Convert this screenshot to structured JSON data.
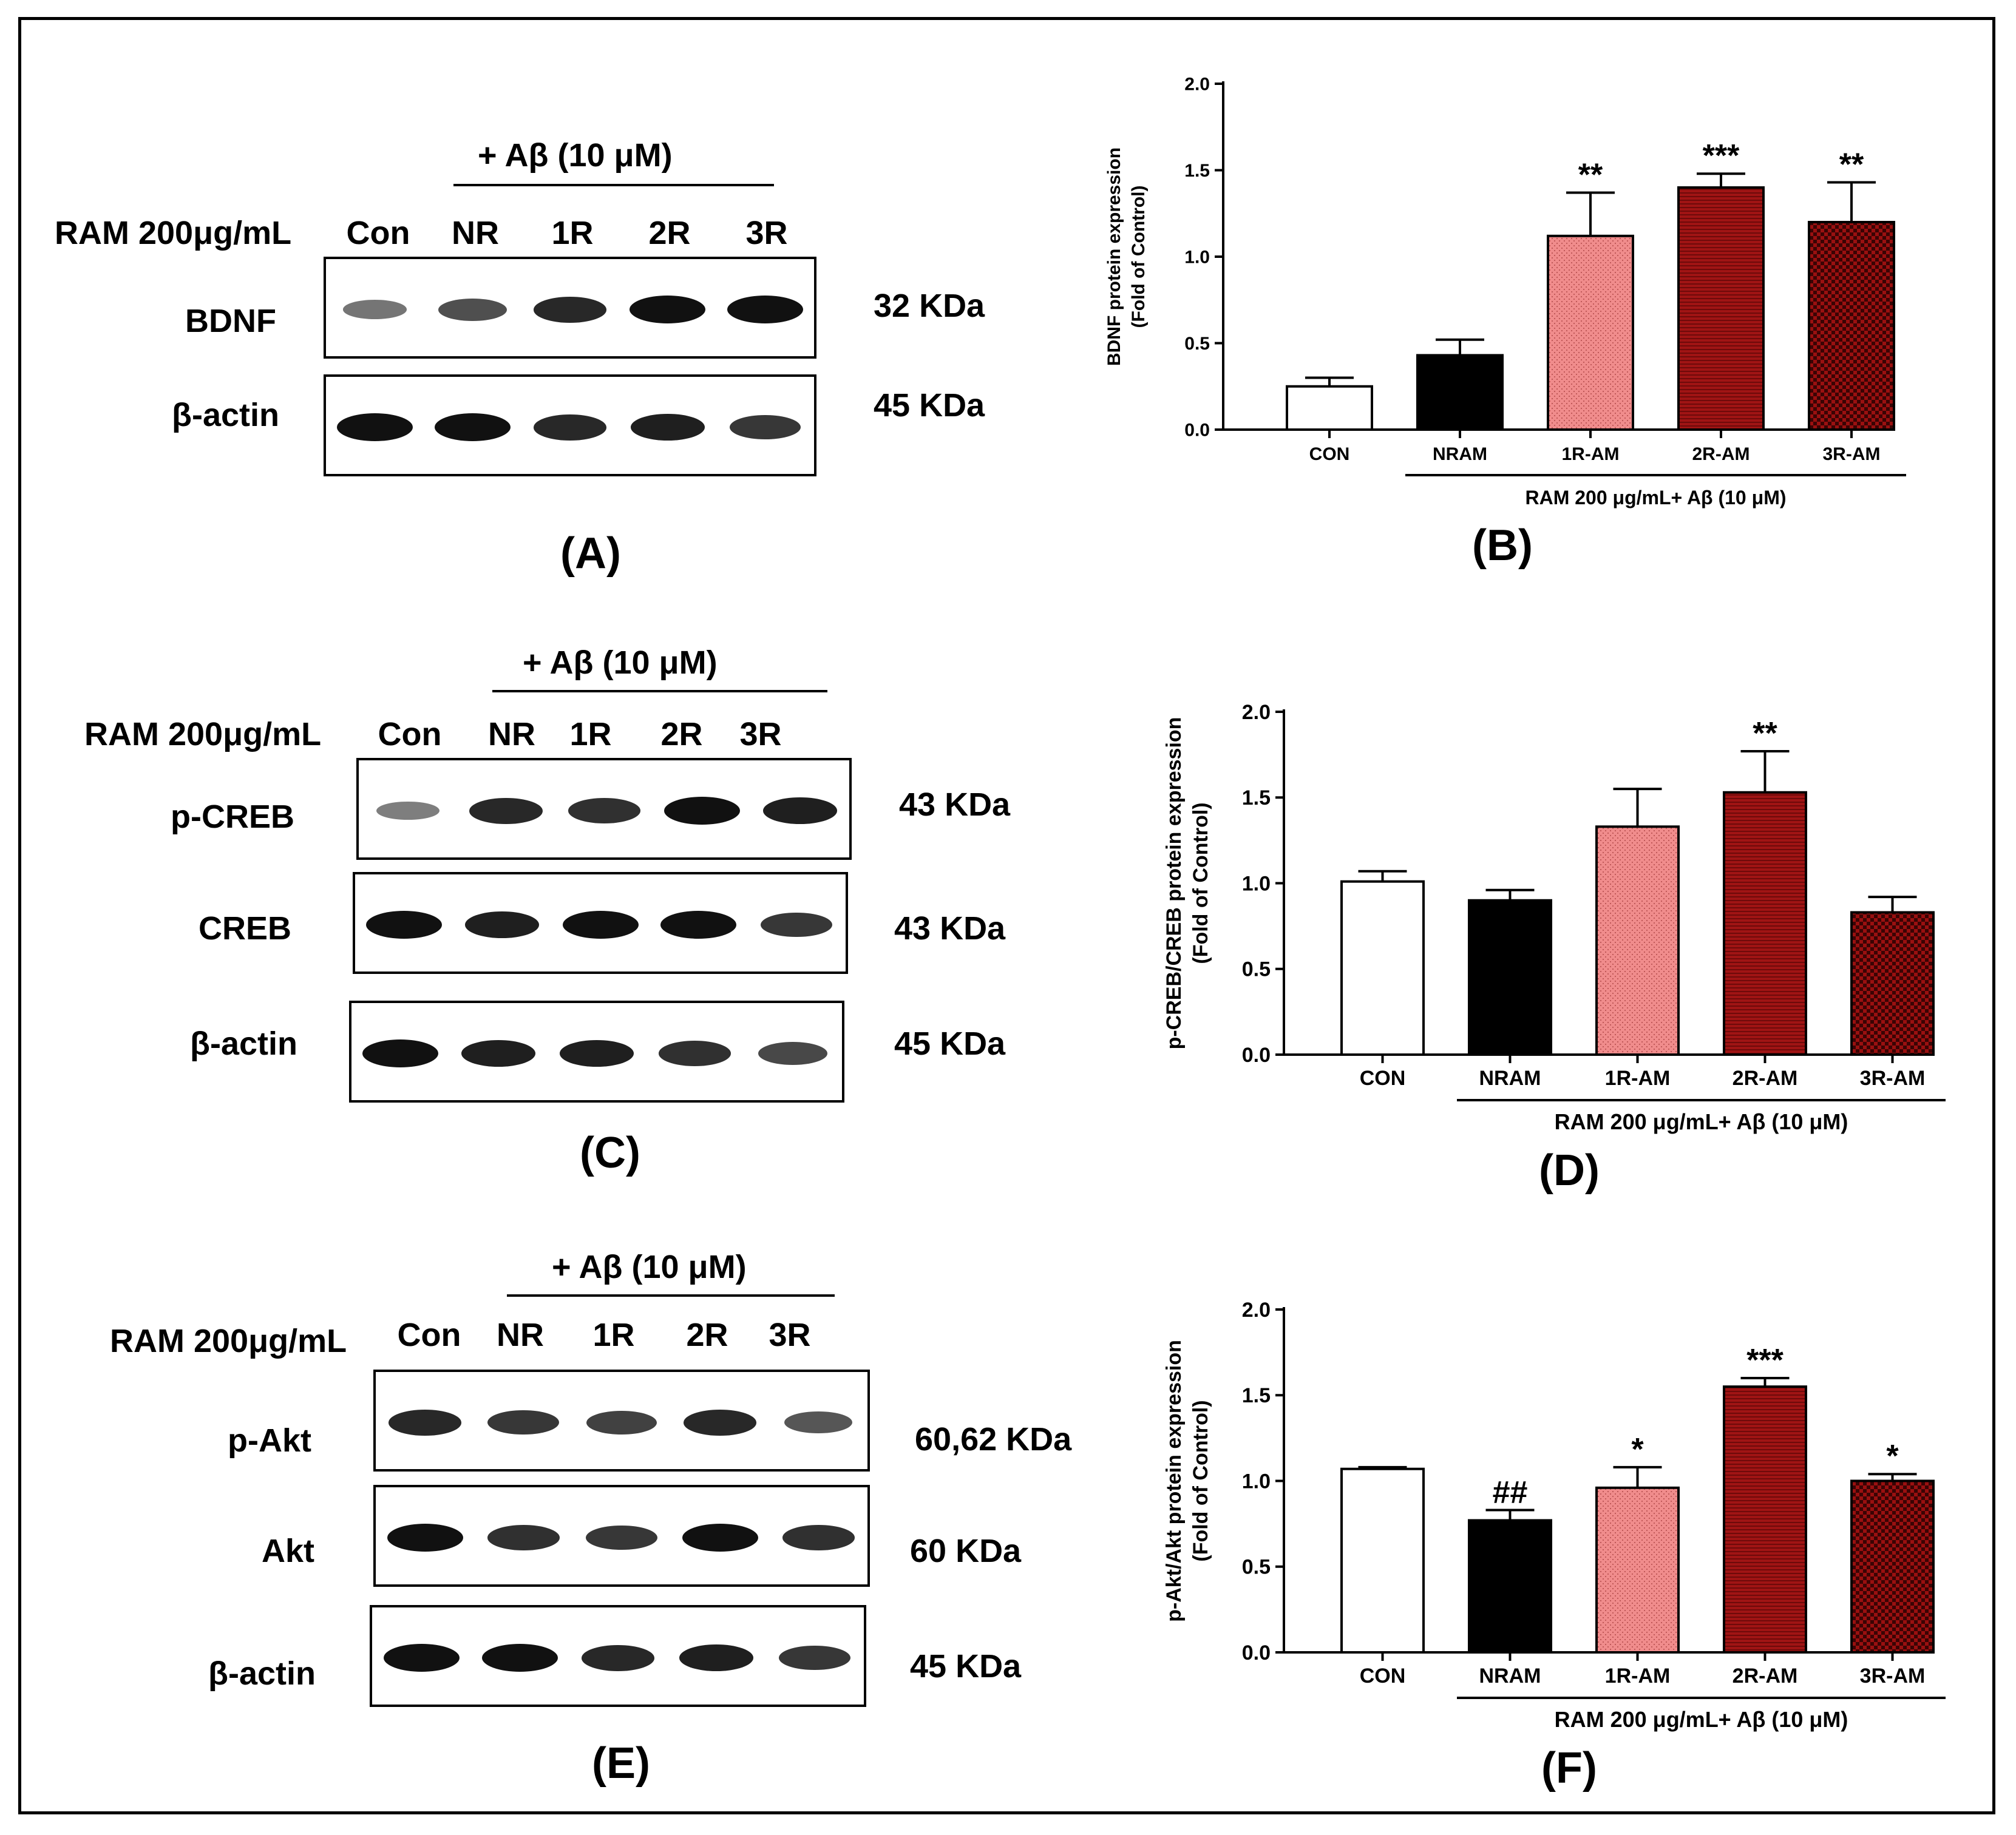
{
  "blots": [
    {
      "panel": "(A)",
      "treatment": "+ Aβ (10 μM)",
      "ram_label": "RAM 200μg/mL",
      "lanes": [
        "Con",
        "NR",
        "1R",
        "2R",
        "3R"
      ],
      "rows": [
        {
          "label": "BDNF",
          "kda": "32 KDa"
        },
        {
          "label": "β-actin",
          "kda": "45 KDa"
        }
      ]
    },
    {
      "panel": "(C)",
      "treatment": "+ Aβ (10 μM)",
      "ram_label": "RAM 200μg/mL",
      "lanes": [
        "Con",
        "NR",
        "1R",
        "2R",
        "3R"
      ],
      "rows": [
        {
          "label": "p-CREB",
          "kda": "43 KDa"
        },
        {
          "label": "CREB",
          "kda": "43 KDa"
        },
        {
          "label": "β-actin",
          "kda": "45 KDa"
        }
      ]
    },
    {
      "panel": "(E)",
      "treatment": "+ Aβ (10 μM)",
      "ram_label": "RAM 200μg/mL",
      "lanes": [
        "Con",
        "NR",
        "1R",
        "2R",
        "3R"
      ],
      "rows": [
        {
          "label": "p-Akt",
          "kda": "60,62 KDa"
        },
        {
          "label": "Akt",
          "kda": "60 KDa"
        },
        {
          "label": "β-actin",
          "kda": "45 KDa"
        }
      ]
    }
  ],
  "band_intensity": [
    [
      [
        0.35,
        0.6,
        0.85,
        1.0,
        1.0
      ],
      [
        1.0,
        1.0,
        0.85,
        0.9,
        0.75
      ]
    ],
    [
      [
        0.3,
        0.85,
        0.8,
        1.0,
        0.9
      ],
      [
        1.0,
        0.9,
        1.0,
        1.0,
        0.75
      ],
      [
        1.0,
        0.9,
        0.9,
        0.8,
        0.65
      ]
    ],
    [
      [
        0.85,
        0.75,
        0.7,
        0.85,
        0.55
      ],
      [
        1.0,
        0.8,
        0.75,
        1.0,
        0.8
      ],
      [
        1.0,
        1.0,
        0.85,
        0.9,
        0.75
      ]
    ]
  ],
  "chart_data": [
    {
      "panel": "(B)",
      "type": "bar",
      "ylabel": "BDNF protein expression\n(Fold of Control)",
      "ylim": [
        0,
        2.0
      ],
      "yticks": [
        "0.0",
        "0.5",
        "1.0",
        "1.5",
        "2.0"
      ],
      "categories": [
        "CON",
        "NRAM",
        "1R-AM",
        "2R-AM",
        "3R-AM"
      ],
      "values": [
        0.25,
        0.43,
        1.12,
        1.4,
        1.2
      ],
      "errors": [
        0.05,
        0.09,
        0.25,
        0.08,
        0.23
      ],
      "annotations": [
        "",
        "",
        "**",
        "***",
        "**"
      ],
      "group_label": "RAM 200 μg/mL+ Aβ (10 μM)"
    },
    {
      "panel": "(D)",
      "type": "bar",
      "ylabel": "p-CREB/CREB protein expression\n(Fold of Control)",
      "ylim": [
        0,
        2.0
      ],
      "yticks": [
        "0.0",
        "0.5",
        "1.0",
        "1.5",
        "2.0"
      ],
      "categories": [
        "CON",
        "NRAM",
        "1R-AM",
        "2R-AM",
        "3R-AM"
      ],
      "values": [
        1.01,
        0.9,
        1.33,
        1.53,
        0.83
      ],
      "errors": [
        0.06,
        0.06,
        0.22,
        0.24,
        0.09
      ],
      "annotations": [
        "",
        "",
        "",
        "**",
        ""
      ],
      "group_label": "RAM 200 μg/mL+ Aβ (10 μM)"
    },
    {
      "panel": "(F)",
      "type": "bar",
      "ylabel": "p-Akt/Akt protein expression\n(Fold of Control)",
      "ylim": [
        0,
        2.0
      ],
      "yticks": [
        "0.0",
        "0.5",
        "1.0",
        "1.5",
        "2.0"
      ],
      "categories": [
        "CON",
        "NRAM",
        "1R-AM",
        "2R-AM",
        "3R-AM"
      ],
      "values": [
        1.07,
        0.77,
        0.96,
        1.55,
        1.0
      ],
      "errors": [
        0.01,
        0.06,
        0.12,
        0.05,
        0.04
      ],
      "annotations": [
        "",
        "##",
        "*",
        "***",
        "*"
      ],
      "group_label": "RAM 200 μg/mL+ Aβ (10 μM)"
    }
  ],
  "colors": {
    "con": "#ffffff",
    "nram": "#000000",
    "r1": "#f08c8c",
    "r2": "#a01414",
    "r3": "#9a1010",
    "band": "#111111"
  }
}
